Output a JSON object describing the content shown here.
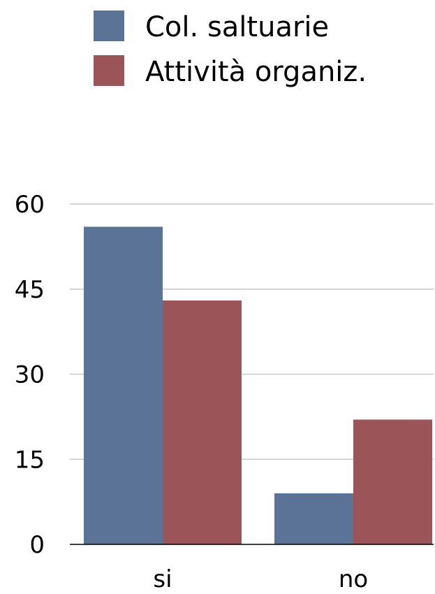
{
  "chart_data": {
    "type": "bar",
    "title": "",
    "xlabel": "",
    "ylabel": "",
    "categories": [
      "si",
      "no"
    ],
    "series": [
      {
        "name": "Col. saltuarie",
        "color": "#5a7396",
        "values": [
          56,
          9
        ]
      },
      {
        "name": "Attività organiz.",
        "color": "#9b5457",
        "values": [
          43,
          22
        ]
      }
    ],
    "ylim": [
      0,
      60
    ],
    "yticks": [
      "0",
      "15",
      "30",
      "45",
      "60"
    ],
    "grid": true,
    "legend_position": "top-center"
  }
}
